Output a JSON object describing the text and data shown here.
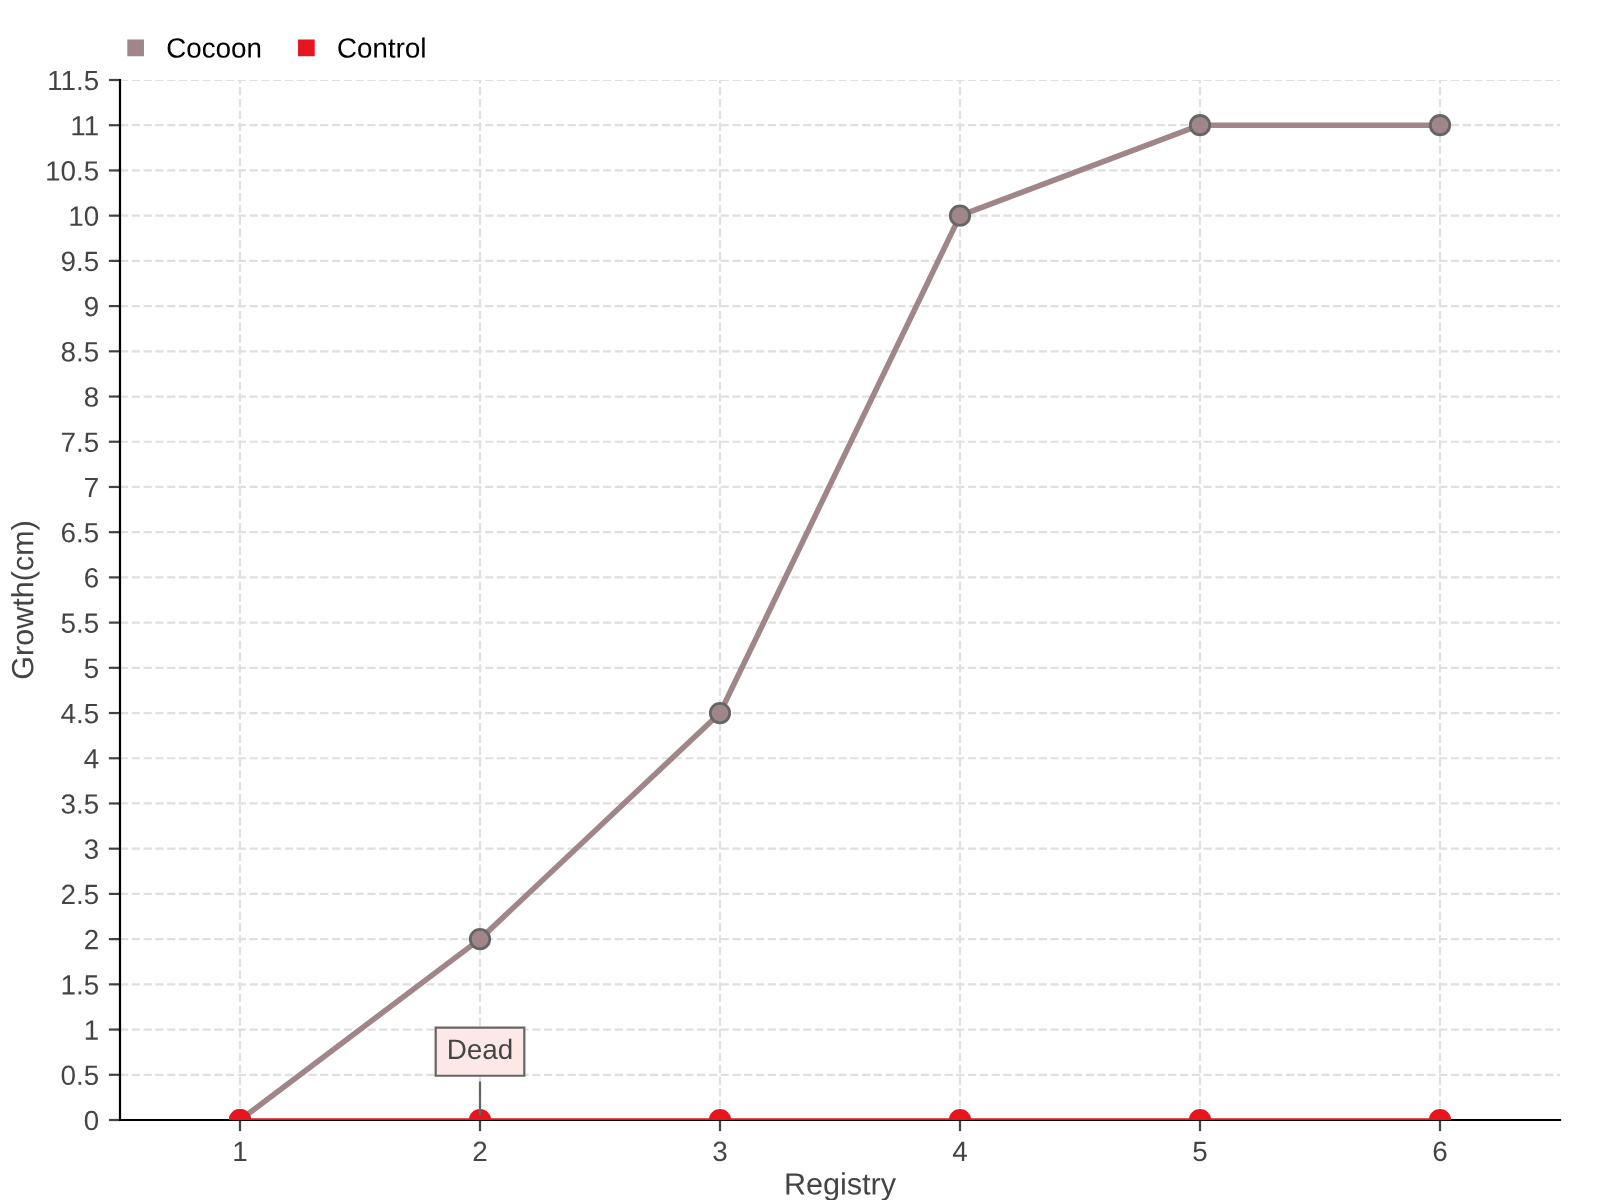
{
  "chart_data": {
    "type": "line",
    "xlabel": "Registry",
    "ylabel": "Growth(cm)",
    "categories": [
      "1",
      "2",
      "3",
      "4",
      "5",
      "6"
    ],
    "series": [
      {
        "name": "Cocoon",
        "color": "#a08688",
        "values": [
          0,
          2,
          4.5,
          10,
          11,
          11
        ]
      },
      {
        "name": "Control",
        "color": "#e8141e",
        "values": [
          0,
          0,
          0,
          0,
          0,
          0
        ]
      }
    ],
    "annotations": [
      {
        "text": "Dead",
        "x": "2",
        "y": 0
      }
    ],
    "ylim": [
      0,
      11.5
    ],
    "yticks": [
      0,
      0.5,
      1,
      1.5,
      2,
      2.5,
      3,
      3.5,
      4,
      4.5,
      5,
      5.5,
      6,
      6.5,
      7,
      7.5,
      8,
      8.5,
      9,
      9.5,
      10,
      10.5,
      11,
      11.5
    ],
    "grid": true,
    "legend": "top left",
    "marker": "circle",
    "line_style": "solid"
  }
}
